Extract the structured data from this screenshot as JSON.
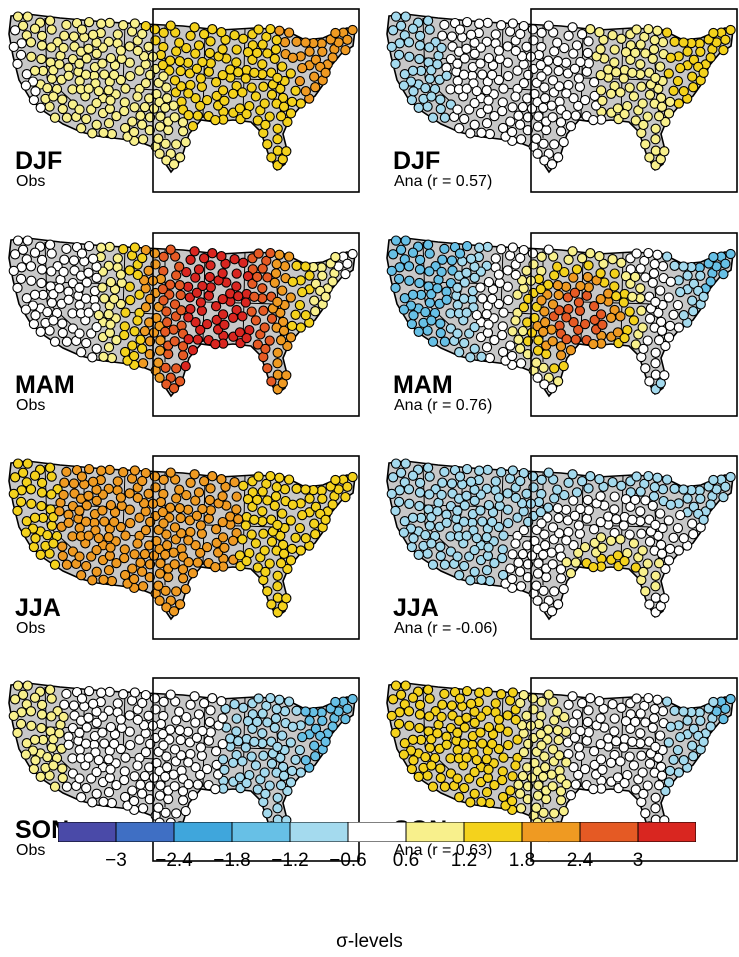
{
  "panels": [
    {
      "season": "DJF",
      "subtitle": "Obs",
      "pattern": "djf_obs"
    },
    {
      "season": "DJF",
      "subtitle": "Ana (r = 0.57)",
      "pattern": "djf_ana"
    },
    {
      "season": "MAM",
      "subtitle": "Obs",
      "pattern": "mam_obs"
    },
    {
      "season": "MAM",
      "subtitle": "Ana (r = 0.76)",
      "pattern": "mam_ana"
    },
    {
      "season": "JJA",
      "subtitle": "Obs",
      "pattern": "jja_obs"
    },
    {
      "season": "JJA",
      "subtitle": "Ana (r = -0.06)",
      "pattern": "jja_ana"
    },
    {
      "season": "SON",
      "subtitle": "Obs",
      "pattern": "son_obs"
    },
    {
      "season": "SON",
      "subtitle": "Ana (r = 0.63)",
      "pattern": "son_ana"
    }
  ],
  "colorbar": {
    "label": "σ-levels",
    "ticks": [
      "−3",
      "−2.4",
      "−1.8",
      "−1.2",
      "−0.6",
      "0.6",
      "1.2",
      "1.8",
      "2.4",
      "3"
    ],
    "colors": [
      "#4a4aa8",
      "#3f6fc4",
      "#3fa6dc",
      "#67c0e6",
      "#a4daee",
      "#ffffff",
      "#f8f08c",
      "#f4d21c",
      "#ef9a22",
      "#e55a24",
      "#d92620"
    ]
  },
  "map_colors": {
    "land": "#c8c8c8",
    "outline": "#000000"
  }
}
